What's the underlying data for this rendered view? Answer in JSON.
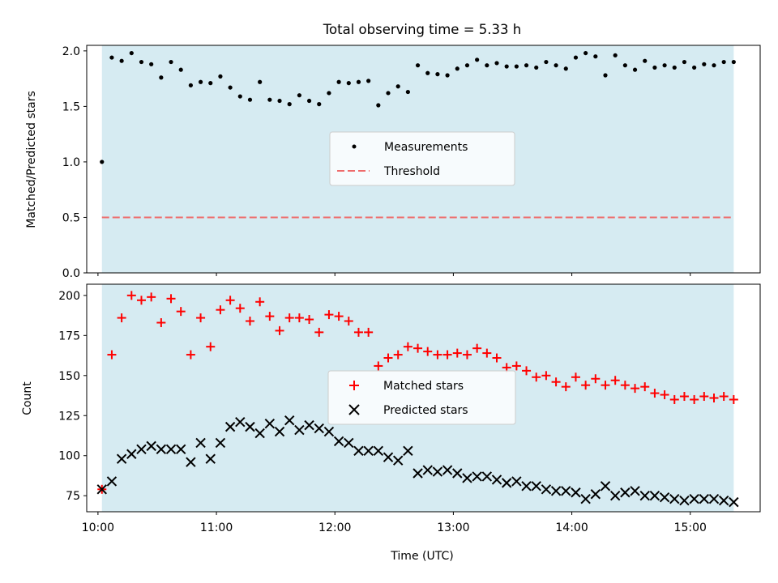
{
  "title": "Total observing time = 5.33 h",
  "colors": {
    "shade": "#add8e6",
    "threshold": "#ee6b6b",
    "matched": "#ff0000",
    "predicted": "#000000",
    "measurement": "#000000"
  },
  "chart_data": [
    {
      "type": "scatter",
      "title": "Total observing time = 5.33 h",
      "xlabel": "",
      "ylabel": "Matched/Predicted stars",
      "ylim": [
        0,
        2.05
      ],
      "yticks": [
        "0.0",
        "0.5",
        "1.0",
        "1.5",
        "2.0"
      ],
      "ytick_values": [
        0,
        0.5,
        1.0,
        1.5,
        2.0
      ],
      "shaded_span": [
        "10:02",
        "15:22"
      ],
      "legend": {
        "placement": "center",
        "entries": [
          "Measurements",
          "Threshold"
        ]
      },
      "threshold": {
        "name": "Threshold",
        "value": 0.5
      },
      "series": [
        {
          "name": "Measurements",
          "x": [
            "10:02",
            "10:07",
            "10:12",
            "10:17",
            "10:22",
            "10:27",
            "10:32",
            "10:37",
            "10:42",
            "10:47",
            "10:52",
            "10:57",
            "11:02",
            "11:07",
            "11:12",
            "11:17",
            "11:22",
            "11:27",
            "11:32",
            "11:37",
            "11:42",
            "11:47",
            "11:52",
            "11:57",
            "12:02",
            "12:07",
            "12:12",
            "12:17",
            "12:22",
            "12:27",
            "12:32",
            "12:37",
            "12:42",
            "12:47",
            "12:52",
            "12:57",
            "13:02",
            "13:07",
            "13:12",
            "13:17",
            "13:22",
            "13:27",
            "13:32",
            "13:37",
            "13:42",
            "13:47",
            "13:52",
            "13:57",
            "14:02",
            "14:07",
            "14:12",
            "14:17",
            "14:22",
            "14:27",
            "14:32",
            "14:37",
            "14:42",
            "14:47",
            "14:52",
            "14:57",
            "15:02",
            "15:07",
            "15:12",
            "15:17",
            "15:22"
          ],
          "y": [
            1.0,
            1.94,
            1.91,
            1.98,
            1.9,
            1.88,
            1.76,
            1.9,
            1.83,
            1.69,
            1.72,
            1.71,
            1.77,
            1.67,
            1.59,
            1.56,
            1.72,
            1.56,
            1.55,
            1.52,
            1.6,
            1.55,
            1.52,
            1.62,
            1.72,
            1.71,
            1.72,
            1.73,
            1.51,
            1.62,
            1.68,
            1.63,
            1.87,
            1.8,
            1.79,
            1.78,
            1.84,
            1.87,
            1.92,
            1.87,
            1.89,
            1.86,
            1.86,
            1.87,
            1.85,
            1.9,
            1.87,
            1.84,
            1.94,
            1.98,
            1.95,
            1.78,
            1.96,
            1.87,
            1.83,
            1.91,
            1.85,
            1.87,
            1.85,
            1.9,
            1.85,
            1.88,
            1.87,
            1.9,
            1.9
          ]
        }
      ]
    },
    {
      "type": "scatter",
      "xlabel": "Time (UTC)",
      "ylabel": "Count",
      "ylim": [
        65,
        207
      ],
      "yticks": [
        "75",
        "100",
        "125",
        "150",
        "175",
        "200"
      ],
      "ytick_values": [
        75,
        100,
        125,
        150,
        175,
        200
      ],
      "x_ticks": [
        "10:00",
        "11:00",
        "12:00",
        "13:00",
        "14:00",
        "15:00"
      ],
      "shaded_span": [
        "10:02",
        "15:22"
      ],
      "legend": {
        "placement": "center",
        "entries": [
          "Matched stars",
          "Predicted stars"
        ]
      },
      "series": [
        {
          "name": "Matched stars",
          "x": [
            "10:02",
            "10:07",
            "10:12",
            "10:17",
            "10:22",
            "10:27",
            "10:32",
            "10:37",
            "10:42",
            "10:47",
            "10:52",
            "10:57",
            "11:02",
            "11:07",
            "11:12",
            "11:17",
            "11:22",
            "11:27",
            "11:32",
            "11:37",
            "11:42",
            "11:47",
            "11:52",
            "11:57",
            "12:02",
            "12:07",
            "12:12",
            "12:17",
            "12:22",
            "12:27",
            "12:32",
            "12:37",
            "12:42",
            "12:47",
            "12:52",
            "12:57",
            "13:02",
            "13:07",
            "13:12",
            "13:17",
            "13:22",
            "13:27",
            "13:32",
            "13:37",
            "13:42",
            "13:47",
            "13:52",
            "13:57",
            "14:02",
            "14:07",
            "14:12",
            "14:17",
            "14:22",
            "14:27",
            "14:32",
            "14:37",
            "14:42",
            "14:47",
            "14:52",
            "14:57",
            "15:02",
            "15:07",
            "15:12",
            "15:17",
            "15:22"
          ],
          "y": [
            79,
            163,
            186,
            200,
            197,
            199,
            183,
            198,
            190,
            163,
            186,
            168,
            191,
            197,
            192,
            184,
            196,
            187,
            178,
            186,
            186,
            185,
            177,
            188,
            187,
            184,
            177,
            177,
            156,
            161,
            163,
            168,
            167,
            165,
            163,
            163,
            164,
            163,
            167,
            164,
            161,
            155,
            156,
            153,
            149,
            150,
            146,
            143,
            149,
            144,
            148,
            144,
            147,
            144,
            142,
            143,
            139,
            138,
            135,
            137,
            135,
            137,
            136,
            137,
            135
          ]
        },
        {
          "name": "Predicted stars",
          "x": [
            "10:02",
            "10:07",
            "10:12",
            "10:17",
            "10:22",
            "10:27",
            "10:32",
            "10:37",
            "10:42",
            "10:47",
            "10:52",
            "10:57",
            "11:02",
            "11:07",
            "11:12",
            "11:17",
            "11:22",
            "11:27",
            "11:32",
            "11:37",
            "11:42",
            "11:47",
            "11:52",
            "11:57",
            "12:02",
            "12:07",
            "12:12",
            "12:17",
            "12:22",
            "12:27",
            "12:32",
            "12:37",
            "12:42",
            "12:47",
            "12:52",
            "12:57",
            "13:02",
            "13:07",
            "13:12",
            "13:17",
            "13:22",
            "13:27",
            "13:32",
            "13:37",
            "13:42",
            "13:47",
            "13:52",
            "13:57",
            "14:02",
            "14:07",
            "14:12",
            "14:17",
            "14:22",
            "14:27",
            "14:32",
            "14:37",
            "14:42",
            "14:47",
            "14:52",
            "14:57",
            "15:02",
            "15:07",
            "15:12",
            "15:17",
            "15:22"
          ],
          "y": [
            79,
            84,
            98,
            101,
            104,
            106,
            104,
            104,
            104,
            96,
            108,
            98,
            108,
            118,
            121,
            118,
            114,
            120,
            115,
            122,
            116,
            119,
            117,
            115,
            109,
            108,
            103,
            103,
            103,
            99,
            97,
            103,
            89,
            91,
            90,
            91,
            89,
            86,
            87,
            87,
            85,
            83,
            84,
            81,
            81,
            79,
            78,
            78,
            77,
            73,
            76,
            81,
            75,
            77,
            78,
            75,
            75,
            74,
            73,
            72,
            73,
            73,
            73,
            72,
            71
          ]
        }
      ]
    }
  ]
}
